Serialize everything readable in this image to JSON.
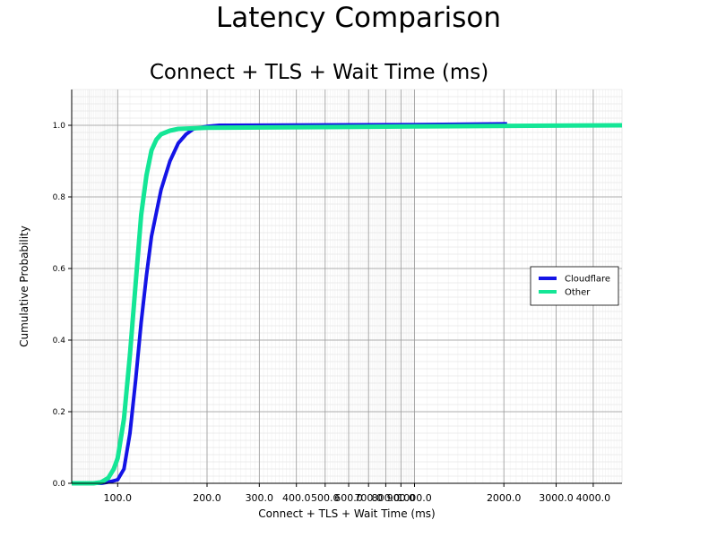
{
  "figure": {
    "suptitle": "Latency Comparison"
  },
  "chart_data": {
    "type": "line",
    "title": "Connect + TLS + Wait Time (ms)",
    "xlabel": "Connect + TLS + Wait Time (ms)",
    "ylabel": "Cumulative Probability",
    "x_scale": "log",
    "xlim": [
      70,
      5000
    ],
    "ylim": [
      0,
      1.1
    ],
    "grid": true,
    "legend_position": "center-right",
    "x_ticks": [
      {
        "value": 100,
        "label": "100.0"
      },
      {
        "value": 200,
        "label": "200.0"
      },
      {
        "value": 300,
        "label": "300.0"
      },
      {
        "value": 400,
        "label": "400.0"
      },
      {
        "value": 500,
        "label": "500.0"
      },
      {
        "value": 600,
        "label": "600.0"
      },
      {
        "value": 700,
        "label": "700.0"
      },
      {
        "value": 800,
        "label": "800.0"
      },
      {
        "value": 900,
        "label": "900.0"
      },
      {
        "value": 1000,
        "label": "1000.0"
      },
      {
        "value": 2000,
        "label": "2000.0"
      },
      {
        "value": 3000,
        "label": "3000.0"
      },
      {
        "value": 4000,
        "label": "4000.0"
      }
    ],
    "y_ticks": [
      {
        "value": 0.0,
        "label": "0.0"
      },
      {
        "value": 0.2,
        "label": "0.2"
      },
      {
        "value": 0.4,
        "label": "0.4"
      },
      {
        "value": 0.6,
        "label": "0.6"
      },
      {
        "value": 0.8,
        "label": "0.8"
      },
      {
        "value": 1.0,
        "label": "1.0"
      }
    ],
    "series": [
      {
        "name": "Cloudflare",
        "color": "#1414e6",
        "points": [
          [
            70,
            0.0
          ],
          [
            88,
            0.0
          ],
          [
            95,
            0.005
          ],
          [
            100,
            0.01
          ],
          [
            105,
            0.04
          ],
          [
            110,
            0.14
          ],
          [
            115,
            0.29
          ],
          [
            120,
            0.45
          ],
          [
            125,
            0.58
          ],
          [
            130,
            0.69
          ],
          [
            140,
            0.82
          ],
          [
            150,
            0.9
          ],
          [
            160,
            0.95
          ],
          [
            170,
            0.975
          ],
          [
            180,
            0.99
          ],
          [
            200,
            0.997
          ],
          [
            220,
            1.0
          ],
          [
            1000,
            1.002
          ],
          [
            2000,
            1.004
          ],
          [
            2050,
            1.004
          ]
        ]
      },
      {
        "name": "Other",
        "color": "#14e696",
        "points": [
          [
            70,
            0.0
          ],
          [
            83,
            0.0
          ],
          [
            88,
            0.003
          ],
          [
            93,
            0.015
          ],
          [
            97,
            0.04
          ],
          [
            100,
            0.07
          ],
          [
            105,
            0.18
          ],
          [
            110,
            0.36
          ],
          [
            115,
            0.56
          ],
          [
            120,
            0.75
          ],
          [
            125,
            0.86
          ],
          [
            130,
            0.93
          ],
          [
            135,
            0.96
          ],
          [
            140,
            0.975
          ],
          [
            150,
            0.985
          ],
          [
            160,
            0.99
          ],
          [
            200,
            0.993
          ],
          [
            500,
            0.995
          ],
          [
            1000,
            0.997
          ],
          [
            5000,
            1.0
          ]
        ]
      }
    ]
  }
}
